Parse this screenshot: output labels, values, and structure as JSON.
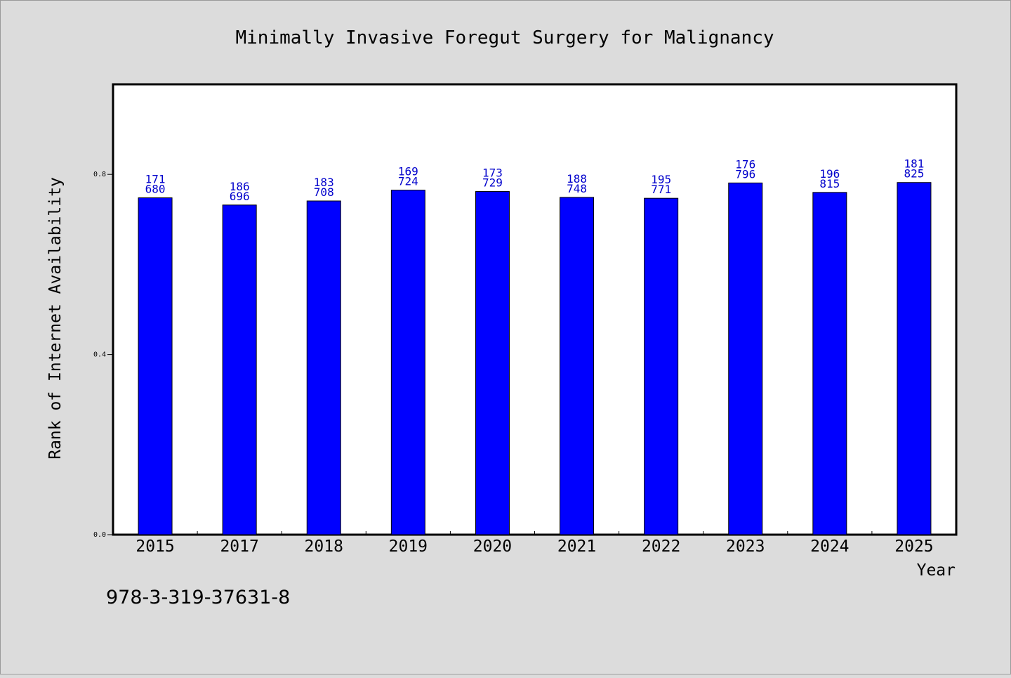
{
  "chart_data": {
    "type": "bar",
    "title": "Minimally Invasive Foregut Surgery for Malignancy",
    "xlabel": "Year",
    "ylabel": "Rank of Internet Availability",
    "categories": [
      "2015",
      "2017",
      "2018",
      "2019",
      "2020",
      "2021",
      "2022",
      "2023",
      "2024",
      "2025"
    ],
    "values": [
      0.748,
      0.732,
      0.741,
      0.765,
      0.762,
      0.749,
      0.747,
      0.781,
      0.76,
      0.782
    ],
    "labels_top": [
      "171",
      "186",
      "183",
      "169",
      "173",
      "188",
      "195",
      "176",
      "196",
      "181"
    ],
    "labels_bottom": [
      "680",
      "696",
      "708",
      "724",
      "729",
      "748",
      "771",
      "796",
      "815",
      "825"
    ],
    "yticks": [
      "0.0",
      "0.4",
      "0.8"
    ],
    "ytick_values": [
      0.0,
      0.4,
      0.8
    ],
    "ylim": [
      0,
      1.0
    ],
    "grid": false,
    "bar_color": "#0000ff",
    "label_color": "#0000cc"
  },
  "footer": {
    "isbn": "978-3-319-37631-8"
  }
}
